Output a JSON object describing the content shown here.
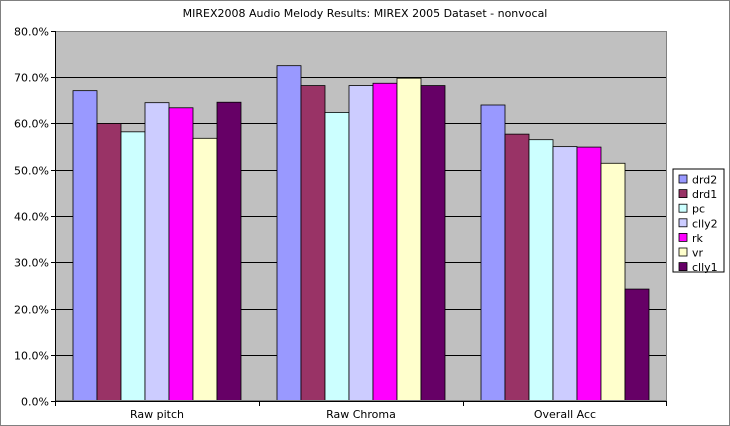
{
  "chart_data": {
    "type": "bar",
    "title": "MIREX2008 Audio Melody Results: MIREX 2005 Dataset - nonvocal",
    "xlabel": "",
    "ylabel": "",
    "categories": [
      "Raw pitch",
      "Raw Chroma",
      "Overall Acc"
    ],
    "ylim": [
      0,
      0.8
    ],
    "yticks": [
      "0.0%",
      "10.0%",
      "20.0%",
      "30.0%",
      "40.0%",
      "50.0%",
      "60.0%",
      "70.0%",
      "80.0%"
    ],
    "value_format": "percent",
    "grid": true,
    "legend_position": "right",
    "plot_background": "#c0c0c0",
    "series": [
      {
        "name": "drd2",
        "color": "#9999ff",
        "values": [
          0.671,
          0.725,
          0.64
        ]
      },
      {
        "name": "drd1",
        "color": "#993366",
        "values": [
          0.6,
          0.682,
          0.577
        ]
      },
      {
        "name": "pc",
        "color": "#ccffff",
        "values": [
          0.582,
          0.624,
          0.565
        ]
      },
      {
        "name": "clly2",
        "color": "#ccccff",
        "values": [
          0.645,
          0.682,
          0.55
        ]
      },
      {
        "name": "rk",
        "color": "#ff00ff",
        "values": [
          0.634,
          0.687,
          0.549
        ]
      },
      {
        "name": "vr",
        "color": "#ffffcc",
        "values": [
          0.568,
          0.698,
          0.514
        ]
      },
      {
        "name": "clly1",
        "color": "#660066",
        "values": [
          0.646,
          0.682,
          0.242
        ]
      }
    ]
  }
}
